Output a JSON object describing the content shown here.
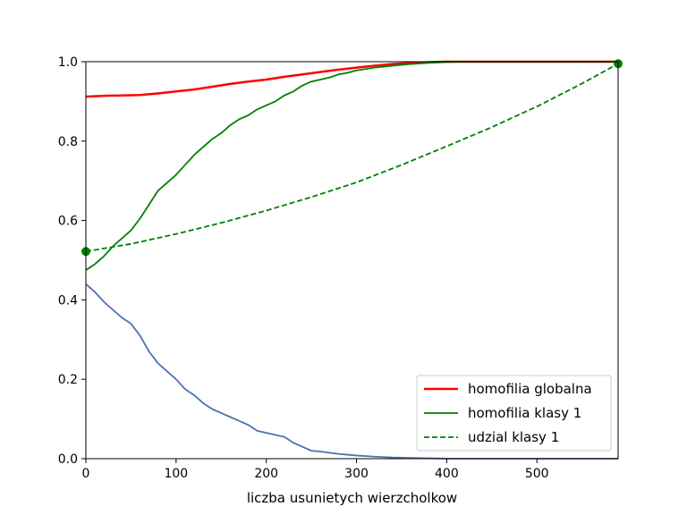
{
  "chart_data": {
    "type": "line",
    "xlabel": "liczba usunietych wierzcholkow",
    "ylabel": "",
    "xlim": [
      0,
      590
    ],
    "ylim": [
      0,
      1.0
    ],
    "xticks": [
      0,
      100,
      200,
      300,
      400,
      500
    ],
    "xtick_labels": [
      "0",
      "100",
      "200",
      "300",
      "400",
      "500"
    ],
    "yticks": [
      0,
      0.2,
      0.4,
      0.6,
      0.8,
      1.0
    ],
    "ytick_labels": [
      "0.0",
      "0.2",
      "0.4",
      "0.6",
      "0.8",
      "1.0"
    ],
    "grid": false,
    "legend_position": "lower-right",
    "series": [
      {
        "name": "homofilia globalna",
        "color": "#ff0000",
        "style": "solid",
        "in_legend": true,
        "x": [
          0,
          20,
          40,
          60,
          80,
          100,
          120,
          140,
          160,
          180,
          200,
          220,
          240,
          260,
          280,
          300,
          320,
          340,
          360,
          380,
          400,
          420,
          440,
          500,
          590
        ],
        "y": [
          0.912,
          0.914,
          0.915,
          0.916,
          0.92,
          0.925,
          0.93,
          0.937,
          0.944,
          0.95,
          0.955,
          0.962,
          0.968,
          0.974,
          0.98,
          0.985,
          0.99,
          0.994,
          0.997,
          0.999,
          1.0,
          1.0,
          1.0,
          1.0,
          1.0
        ]
      },
      {
        "name": "homofilia klasy 1",
        "color": "#008000",
        "style": "solid",
        "in_legend": true,
        "x": [
          0,
          10,
          20,
          30,
          40,
          50,
          60,
          70,
          80,
          90,
          100,
          110,
          120,
          130,
          140,
          150,
          160,
          170,
          180,
          190,
          200,
          210,
          220,
          230,
          240,
          250,
          260,
          270,
          280,
          290,
          300,
          320,
          340,
          360,
          380,
          400,
          420,
          500,
          590
        ],
        "y": [
          0.475,
          0.49,
          0.51,
          0.535,
          0.555,
          0.575,
          0.605,
          0.64,
          0.675,
          0.695,
          0.715,
          0.74,
          0.765,
          0.785,
          0.805,
          0.82,
          0.84,
          0.855,
          0.865,
          0.88,
          0.89,
          0.9,
          0.915,
          0.925,
          0.94,
          0.95,
          0.955,
          0.96,
          0.968,
          0.972,
          0.978,
          0.985,
          0.99,
          0.994,
          0.997,
          0.999,
          1.0,
          1.0,
          1.0
        ]
      },
      {
        "name": "udzial klasy 1",
        "color": "#008000",
        "style": "dashed",
        "in_legend": true,
        "x": [
          0,
          50,
          100,
          150,
          200,
          250,
          300,
          350,
          400,
          450,
          500,
          550,
          590
        ],
        "y": [
          0.522,
          0.541,
          0.566,
          0.594,
          0.625,
          0.659,
          0.696,
          0.74,
          0.787,
          0.835,
          0.887,
          0.945,
          0.995
        ]
      },
      {
        "name": "",
        "color": "#4c72b0",
        "style": "solid",
        "in_legend": false,
        "x": [
          0,
          10,
          20,
          30,
          40,
          50,
          60,
          70,
          80,
          90,
          100,
          110,
          120,
          130,
          140,
          150,
          160,
          170,
          180,
          190,
          200,
          210,
          220,
          230,
          240,
          250,
          260,
          270,
          280,
          290,
          300,
          320,
          340,
          360,
          380,
          400,
          450,
          500,
          590
        ],
        "y": [
          0.44,
          0.42,
          0.395,
          0.375,
          0.355,
          0.34,
          0.31,
          0.27,
          0.24,
          0.22,
          0.2,
          0.175,
          0.16,
          0.14,
          0.125,
          0.115,
          0.105,
          0.095,
          0.085,
          0.07,
          0.065,
          0.06,
          0.055,
          0.04,
          0.03,
          0.02,
          0.018,
          0.015,
          0.012,
          0.01,
          0.008,
          0.005,
          0.003,
          0.002,
          0.001,
          0.0,
          0.0,
          0.0,
          0.0
        ]
      }
    ],
    "markers": [
      {
        "x": 0,
        "y": 0.522,
        "color": "#008000"
      },
      {
        "x": 590,
        "y": 0.995,
        "color": "#008000"
      }
    ]
  }
}
